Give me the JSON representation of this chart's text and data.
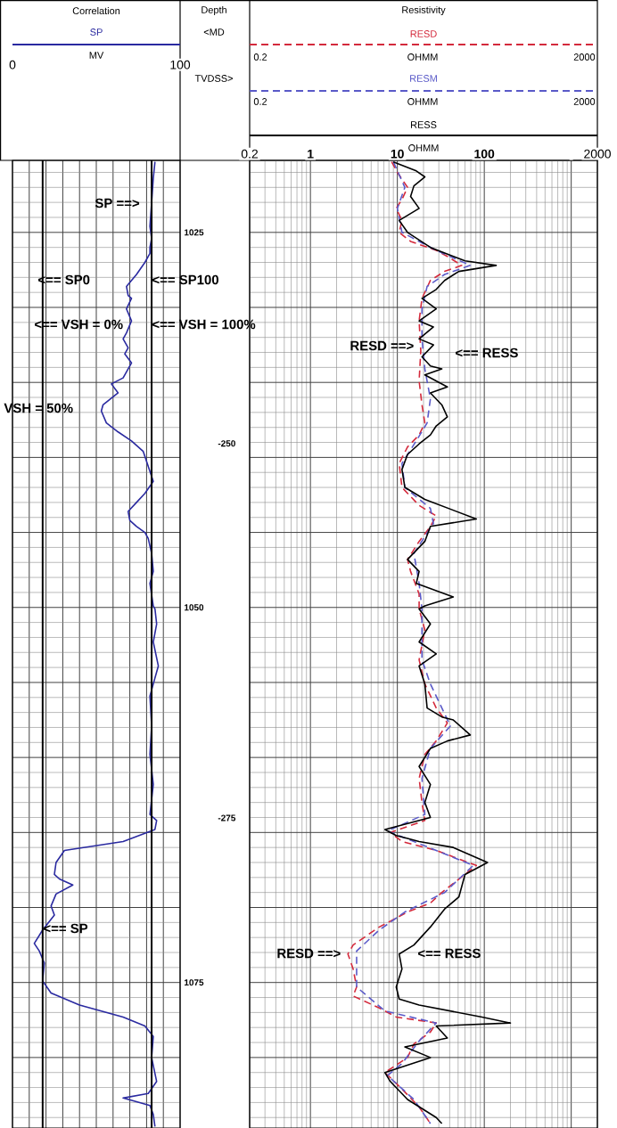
{
  "chart_data": [
    {
      "type": "line",
      "title": "Correlation",
      "xlabel": "MV",
      "legend": "top",
      "grid": true,
      "xlim": [
        0,
        100
      ],
      "xticks": [
        0,
        {
          "value": 10,
          "label": null
        },
        {
          "value": 20,
          "label": null
        },
        {
          "value": 30,
          "label": null
        },
        {
          "value": 40,
          "label": null
        },
        {
          "value": 50,
          "label": null
        },
        {
          "value": 60,
          "label": null
        },
        {
          "value": 70,
          "label": null
        },
        {
          "value": 80,
          "label": null
        },
        {
          "value": 90,
          "label": null
        },
        100
      ],
      "ylim": [
        1084.7,
        1020.2
      ],
      "yticks": [
        1025,
        {
          "value": 1030,
          "label": null
        },
        {
          "value": 1035,
          "label": null
        },
        {
          "value": 1040,
          "label": null
        },
        {
          "value": 1045,
          "label": null
        },
        1050,
        {
          "value": 1055,
          "label": null
        },
        {
          "value": 1060,
          "label": null
        },
        {
          "value": 1065,
          "label": null
        },
        {
          "value": 1070,
          "label": null
        },
        1075,
        {
          "value": 1080,
          "label": null
        }
      ],
      "y2lim": [
        -295.7,
        -231.1
      ],
      "y2ticks": [
        -250,
        -275
      ],
      "ref_lines": [
        {
          "axis": "x",
          "value": 18
        },
        {
          "axis": "x",
          "value": 83
        }
      ],
      "annotations": [
        "Depth",
        "<MD",
        "TVDSS>",
        "SP ==>",
        "<== SP0",
        "<== SP100",
        "<== VSH = 0%",
        "<== VSH = 100%",
        "VSH = 50%",
        "<== SP"
      ],
      "series": [
        {
          "name": "SP",
          "color": "#2a2aa0",
          "line_style": "solid",
          "x": [
            85,
            84,
            83,
            82,
            83,
            82,
            82,
            79,
            74,
            68,
            69,
            71,
            68,
            71,
            68,
            66,
            69,
            67,
            71,
            68,
            66,
            59,
            63,
            54,
            53,
            56,
            63,
            71,
            78,
            84,
            79,
            74,
            69,
            70,
            74,
            79,
            81,
            83,
            84,
            82,
            84,
            85,
            86,
            84,
            87,
            82,
            83,
            82,
            84,
            82,
            86,
            85,
            66,
            31,
            26,
            25,
            28,
            36,
            26,
            23,
            25,
            18,
            13,
            16,
            19,
            18,
            23,
            40,
            66,
            79,
            84,
            83,
            86,
            81,
            66,
            82,
            84,
            85
          ],
          "values": [
            1020.3,
            1021.4,
            1023.0,
            1024.6,
            1025.4,
            1026.0,
            1026.4,
            1027.0,
            1027.8,
            1028.6,
            1029.2,
            1029.4,
            1030.1,
            1030.9,
            1031.7,
            1032.1,
            1032.7,
            1033.1,
            1033.7,
            1034.3,
            1034.7,
            1035.1,
            1035.7,
            1036.5,
            1036.9,
            1037.7,
            1038.3,
            1038.9,
            1039.6,
            1041.6,
            1042.4,
            1043.0,
            1043.6,
            1044.2,
            1044.6,
            1045.0,
            1045.4,
            1046.4,
            1047.6,
            1048.4,
            1049.9,
            1050.1,
            1051.1,
            1052.3,
            1053.9,
            1055.9,
            1057.9,
            1059.8,
            1061.8,
            1063.8,
            1064.2,
            1064.8,
            1065.6,
            1066.2,
            1067.0,
            1067.8,
            1068.1,
            1068.5,
            1069.1,
            1069.9,
            1070.5,
            1071.5,
            1072.4,
            1072.9,
            1073.7,
            1074.9,
            1075.7,
            1076.5,
            1077.3,
            1077.9,
            1078.6,
            1080.0,
            1081.6,
            1082.4,
            1082.7,
            1083.2,
            1083.8,
            1084.6
          ]
        }
      ]
    },
    {
      "type": "line",
      "title": "Resistivity",
      "xlabel": "OHMM",
      "legend": "top",
      "grid": true,
      "log": "x",
      "tick_labels": "x",
      "xlim": [
        0.2,
        2000
      ],
      "xticks": [
        0.2,
        1,
        10,
        100,
        {
          "value": 1000,
          "label": null
        },
        2000
      ],
      "ylim": [
        1084.7,
        1020.2
      ],
      "yticks": [
        {
          "value": 1025,
          "label": null
        },
        {
          "value": 1030,
          "label": null
        },
        {
          "value": 1035,
          "label": null
        },
        {
          "value": 1040,
          "label": null
        },
        {
          "value": 1045,
          "label": null
        },
        {
          "value": 1050,
          "label": null
        },
        {
          "value": 1055,
          "label": null
        },
        {
          "value": 1060,
          "label": null
        },
        {
          "value": 1065,
          "label": null
        },
        {
          "value": 1070,
          "label": null
        },
        {
          "value": 1075,
          "label": null
        },
        {
          "value": 1080,
          "label": null
        }
      ],
      "annotations": [
        "0.2",
        "OHMM",
        "2000",
        "0.2",
        "OHMM",
        "2000",
        "RESD ==>",
        "<== RESS",
        "RESD ==>",
        "<== RESS"
      ],
      "series": [
        {
          "name": "RESD",
          "color": "#d42a3c",
          "line_style": "dashed",
          "x": [
            8.6,
            10,
            13.1,
            11.3,
            9.7,
            11.3,
            10.5,
            14.2,
            28,
            37.6,
            55,
            35,
            24,
            19.2,
            17.8,
            18.6,
            17.8,
            19.2,
            20.7,
            17.8,
            13.1,
            10.5,
            11.3,
            17.8,
            28,
            24,
            17.8,
            13.1,
            14.2,
            17.8,
            17.8,
            20.7,
            17.8,
            20.7,
            28,
            37.6,
            28,
            20.7,
            17.8,
            19.2,
            20.7,
            8.3,
            11.3,
            28,
            81,
            32.5,
            24,
            13.1,
            6.2,
            3.1,
            2.7,
            3.1,
            3.4,
            3.1,
            6.2,
            9.7,
            28,
            24,
            15.5,
            13.1,
            7.2,
            11.3,
            17.8,
            24
          ],
          "values": [
            1020.3,
            1021.0,
            1022.0,
            1022.8,
            1023.4,
            1024.2,
            1025.0,
            1025.6,
            1026.2,
            1026.6,
            1027.2,
            1027.6,
            1028.2,
            1029.4,
            1030.9,
            1032.9,
            1034.9,
            1036.5,
            1037.7,
            1038.5,
            1039.3,
            1040.4,
            1042.0,
            1043.2,
            1043.9,
            1044.6,
            1045.6,
            1046.8,
            1047.6,
            1049.1,
            1050.1,
            1051.5,
            1053.5,
            1055.1,
            1056.7,
            1057.7,
            1058.9,
            1059.8,
            1061.4,
            1063.0,
            1064.2,
            1065.0,
            1065.6,
            1066.2,
            1067.2,
            1069.0,
            1069.7,
            1070.3,
            1071.3,
            1072.5,
            1073.1,
            1074.1,
            1075.3,
            1075.9,
            1076.7,
            1077.3,
            1077.7,
            1078.3,
            1079.1,
            1080.0,
            1081.0,
            1082.1,
            1083.3,
            1084.4
          ]
        },
        {
          "name": "RESM",
          "color": "#5a5ac8",
          "line_style": "dashed",
          "x": [
            9.0,
            12.2,
            10,
            11.3,
            28,
            69,
            35,
            22,
            19.2,
            19.2,
            20.7,
            24,
            22,
            16.5,
            11.3,
            12.2,
            24,
            26,
            15.5,
            17.8,
            19.2,
            19.2,
            24,
            40.8,
            24,
            19.2,
            20.7,
            7.7,
            28,
            74.6,
            35,
            12.2,
            6.2,
            3.4,
            3.4,
            7.2,
            28,
            17.8,
            11.3,
            7.7,
            15.5,
            24
          ],
          "values": [
            1020.3,
            1022.0,
            1023.4,
            1025.0,
            1026.2,
            1027.2,
            1027.8,
            1028.6,
            1030.1,
            1032.1,
            1034.1,
            1036.1,
            1037.7,
            1038.9,
            1040.4,
            1042.0,
            1043.4,
            1044.4,
            1046.4,
            1048.4,
            1050.1,
            1053.5,
            1055.1,
            1057.9,
            1059.4,
            1061.4,
            1063.8,
            1064.9,
            1066.2,
            1067.2,
            1069.0,
            1070.3,
            1071.5,
            1072.9,
            1075.3,
            1076.9,
            1077.7,
            1078.9,
            1080.4,
            1081.2,
            1082.8,
            1084.4
          ]
        },
        {
          "name": "RESS",
          "color": "#000000",
          "line_style": "solid",
          "x": [
            9.0,
            16.5,
            20.7,
            15.5,
            14.2,
            17.8,
            10.5,
            13.1,
            24,
            44,
            60,
            137,
            51,
            35,
            28,
            19.2,
            28,
            17.8,
            26,
            17.8,
            26,
            19.2,
            24,
            32.5,
            20.7,
            37.6,
            24,
            32.5,
            37.6,
            28,
            24,
            17.8,
            13.1,
            11.3,
            12.2,
            20.7,
            81,
            24,
            20.7,
            13.1,
            17.8,
            16.5,
            44,
            20.7,
            17.8,
            24,
            17.8,
            28,
            17.8,
            20.7,
            22,
            32.5,
            44,
            69,
            37.6,
            24,
            17.8,
            24,
            20.7,
            24,
            7.2,
            9.7,
            13.1,
            17.8,
            44,
            109,
            60,
            51,
            35,
            24,
            15.5,
            10.5,
            11.3,
            9.7,
            10.5,
            17.8,
            94,
            200,
            28,
            37.6,
            12.2,
            24,
            7.2,
            8.3,
            13.1,
            28,
            32.5
          ],
          "values": [
            1020.3,
            1020.9,
            1021.3,
            1021.9,
            1022.6,
            1023.4,
            1024.2,
            1025.0,
            1026.0,
            1026.6,
            1026.9,
            1027.2,
            1027.6,
            1028.2,
            1028.8,
            1029.4,
            1030.1,
            1030.9,
            1031.3,
            1032.1,
            1032.5,
            1033.3,
            1033.9,
            1034.1,
            1034.5,
            1035.3,
            1035.7,
            1036.5,
            1037.3,
            1037.9,
            1038.5,
            1039.1,
            1039.8,
            1040.8,
            1042.0,
            1042.8,
            1044.1,
            1044.6,
            1045.6,
            1046.8,
            1047.6,
            1048.4,
            1049.3,
            1049.9,
            1050.1,
            1051.1,
            1052.3,
            1053.1,
            1053.9,
            1055.1,
            1056.7,
            1057.3,
            1057.5,
            1058.5,
            1058.9,
            1059.4,
            1060.6,
            1061.8,
            1063.0,
            1064.0,
            1064.8,
            1065.2,
            1065.4,
            1065.6,
            1066.0,
            1067.0,
            1067.8,
            1069.3,
            1070.1,
            1071.3,
            1072.5,
            1073.1,
            1074.1,
            1075.3,
            1076.1,
            1076.5,
            1077.3,
            1077.7,
            1077.9,
            1078.7,
            1079.3,
            1080.0,
            1081.0,
            1081.6,
            1082.8,
            1084.0,
            1084.4
          ]
        }
      ]
    }
  ]
}
